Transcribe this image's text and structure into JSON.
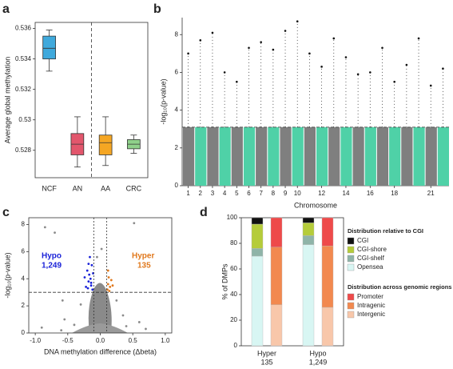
{
  "chart_data": [
    {
      "label": "a",
      "type": "box",
      "ylabel": "Average global methylation",
      "categories": [
        "NCF",
        "AN",
        "AA",
        "CRC"
      ],
      "colors": [
        "#3fa9dc",
        "#e2566c",
        "#f5a623",
        "#8fd18a"
      ],
      "whisker_low": [
        0.5332,
        0.5269,
        0.527,
        0.5278
      ],
      "q1": [
        0.534,
        0.5277,
        0.5277,
        0.5281
      ],
      "median": [
        0.5347,
        0.5284,
        0.5285,
        0.5284
      ],
      "q3": [
        0.5355,
        0.5291,
        0.529,
        0.5287
      ],
      "whisker_high": [
        0.5359,
        0.5302,
        0.5302,
        0.529
      ],
      "ylim": [
        0.5262,
        0.5364
      ],
      "yticks": [
        0.528,
        0.53,
        0.532,
        0.534,
        0.536
      ]
    },
    {
      "label": "b",
      "type": "manhattan",
      "ylabel": "-log₁₀(p-value)",
      "xlabel": "Chromosome",
      "categories": [
        "1",
        "2",
        "3",
        "4",
        "5",
        "6",
        "7",
        "8",
        "9",
        "10",
        null,
        "12",
        null,
        "14",
        null,
        "16",
        null,
        "18",
        null,
        null,
        "21",
        null
      ],
      "values": [
        7.0,
        7.7,
        8.1,
        6.0,
        5.5,
        7.3,
        7.6,
        7.2,
        8.2,
        8.7,
        7.0,
        6.3,
        7.8,
        6.8,
        5.9,
        6.0,
        7.3,
        5.5,
        6.4,
        7.8,
        5.3,
        6.2
      ],
      "colors": [
        "#7f7f7f",
        "#4fd1a7"
      ],
      "peak_color": "#111111",
      "threshold": 3.1,
      "threshold_color": "#e0452d",
      "ylim": [
        0,
        8.9
      ],
      "yticks": [
        0,
        2,
        4,
        6,
        8
      ]
    },
    {
      "label": "c",
      "type": "scatter",
      "ylabel": "-log₁₀(p-value)",
      "xlabel": "DNA methylation difference (Δbeta)",
      "series": [
        {
          "color": "#8a8a8a",
          "x": [
            -0.85,
            -0.7,
            0.52,
            -0.55,
            -0.4,
            0.35,
            0.6,
            0.7,
            -0.9,
            -0.3,
            0.25,
            0.4,
            -0.6,
            0.02,
            -0.05,
            -0.58
          ],
          "values": [
            7.8,
            7.4,
            8.1,
            1.0,
            0.6,
            1.3,
            0.8,
            0.3,
            0.4,
            2.1,
            2.4,
            0.5,
            0.2,
            6.2,
            5.6,
            2.4
          ]
        },
        {
          "color": "#1a22d8",
          "x": [
            -0.12,
            -0.14,
            -0.15,
            -0.17,
            -0.18,
            -0.2,
            -0.22,
            -0.13,
            -0.16,
            -0.19,
            -0.24,
            -0.14,
            -0.11,
            -0.18
          ],
          "values": [
            3.2,
            3.5,
            4.0,
            4.3,
            3.8,
            4.6,
            3.4,
            5.0,
            5.6,
            3.3,
            4.1,
            3.7,
            4.4,
            5.1
          ]
        },
        {
          "color": "#e0781c",
          "x": [
            0.11,
            0.12,
            0.13,
            0.15,
            0.17,
            0.12,
            0.14,
            0.19
          ],
          "values": [
            3.2,
            3.6,
            4.1,
            3.4,
            3.9,
            4.6,
            3.1,
            3.5
          ]
        }
      ],
      "annotations": [
        {
          "text": "Hypo",
          "count": "1,249",
          "color": "#1a22d8"
        },
        {
          "text": "Hyper",
          "count": "135",
          "color": "#e0781c"
        }
      ],
      "threshold": 3,
      "x_thresholds": [
        -0.1,
        0.1
      ],
      "threshold_color": "#e0452d",
      "xlim": [
        -1.1,
        1.1
      ],
      "xticks": [
        {
          "value": -1,
          "label": "-1.0"
        },
        {
          "value": -0.5,
          "label": "-0.5"
        },
        {
          "value": 0,
          "label": "0.0"
        },
        {
          "value": 0.5,
          "label": "0.5"
        },
        {
          "value": 1,
          "label": "1.0"
        }
      ],
      "ylim": [
        0,
        8.5
      ],
      "yticks": [
        0,
        2,
        4,
        6,
        8
      ]
    },
    {
      "label": "d",
      "type": "bar",
      "ylabel": "% of DMPs",
      "categories": [
        "Hyper",
        "Hypo"
      ],
      "category_counts": [
        "135",
        "1,249"
      ],
      "stacks": [
        {
          "title": "Distribution relative to CGI",
          "series": [
            {
              "name": "Opensea",
              "color": "#d8f6f3",
              "values": [
                70,
                79
              ]
            },
            {
              "name": "CGI-shelf",
              "color": "#8fb4a8",
              "values": [
                6,
                7
              ]
            },
            {
              "name": "CGI-shore",
              "color": "#b5cc3a",
              "values": [
                19,
                10
              ]
            },
            {
              "name": "CGI",
              "color": "#111111",
              "values": [
                5,
                4
              ]
            }
          ]
        },
        {
          "title": "Distribution across genomic regions",
          "series": [
            {
              "name": "Intergenic",
              "color": "#f8c7aa",
              "values": [
                32,
                30
              ]
            },
            {
              "name": "Intragenic",
              "color": "#f2894f",
              "values": [
                45,
                48
              ]
            },
            {
              "name": "Promoter",
              "color": "#ee4a4a",
              "values": [
                23,
                22
              ]
            }
          ]
        }
      ],
      "ylim": [
        0,
        100
      ],
      "yticks": [
        0,
        20,
        40,
        60,
        80,
        100
      ]
    }
  ]
}
